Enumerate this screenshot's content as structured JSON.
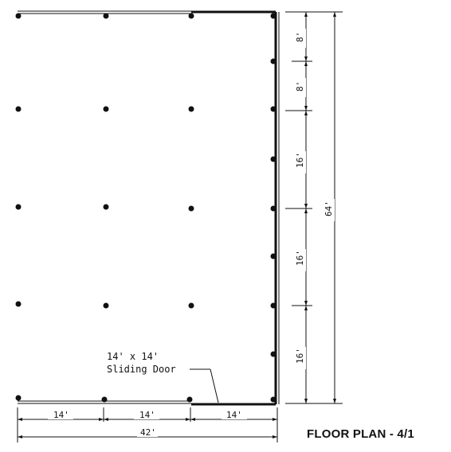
{
  "title": "FLOOR PLAN - 4/1",
  "door": {
    "size_label": "14' x 14'",
    "type_label": "Sliding Door"
  },
  "bottom_dimensions": {
    "bays": [
      "14'",
      "14'",
      "14'"
    ],
    "total": "42'"
  },
  "right_dimensions": {
    "segments": [
      "8'",
      "8'",
      "16'",
      "16'",
      "16'"
    ],
    "total": "64'"
  },
  "colors": {
    "ink": "#111111",
    "background": "#ffffff"
  }
}
